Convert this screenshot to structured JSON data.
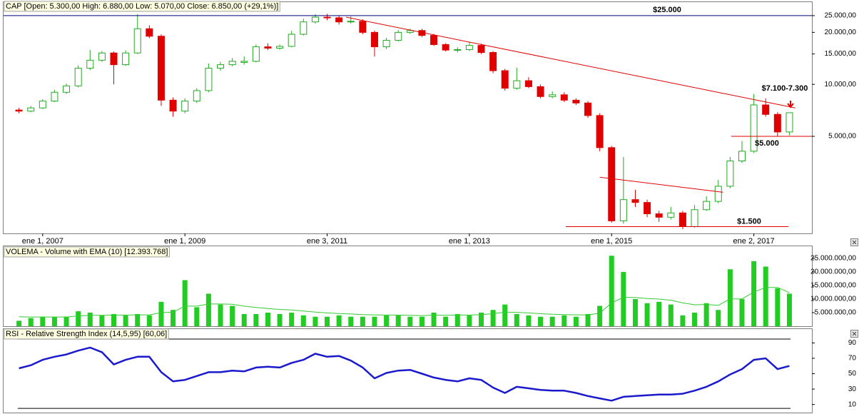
{
  "chart_data": [
    {
      "type": "candlestick",
      "title": "CAP [Open: 5.300,00  High: 6.880,00  Low: 5.070,00  Close: 6.850,00  (+29,1%)]",
      "categories": [
        null,
        null,
        null,
        null,
        null,
        null,
        null,
        null,
        null,
        null,
        null,
        null,
        null,
        null,
        null,
        null,
        null,
        null,
        null,
        null,
        null,
        null,
        null,
        null,
        null,
        null,
        null,
        null,
        null,
        null,
        null,
        null,
        null,
        null,
        null,
        null,
        null,
        null,
        null,
        null,
        null,
        null,
        null,
        null,
        null,
        null,
        null,
        null,
        null,
        null,
        null,
        null,
        null,
        null,
        null,
        null,
        null,
        null,
        null,
        null,
        null,
        null,
        null,
        null,
        null,
        null
      ],
      "open": [
        7100,
        7000,
        7300,
        8000,
        9000,
        9800,
        12400,
        13800,
        15200,
        13000,
        15200,
        21000,
        19000,
        8100,
        7000,
        8000,
        9200,
        12400,
        13000,
        13400,
        13600,
        16500,
        16200,
        16600,
        19500,
        23000,
        24500,
        24300,
        23000,
        23200,
        20000,
        16500,
        18000,
        20000,
        20500,
        19200,
        17000,
        15800,
        15900,
        16800,
        15300,
        12000,
        9500,
        10500,
        9700,
        8500,
        8700,
        8100,
        7800,
        6600,
        4300,
        1620,
        2150,
        2070,
        1780,
        1700,
        1800,
        1500,
        1880,
        2100,
        2570,
        3600,
        4100,
        7600,
        6700,
        5300
      ],
      "high": [
        7300,
        7500,
        8200,
        9300,
        10100,
        12900,
        15800,
        15600,
        15500,
        15700,
        25500,
        22000,
        19500,
        8400,
        8300,
        9500,
        13200,
        13500,
        14200,
        14500,
        17000,
        17300,
        17000,
        20400,
        24000,
        25500,
        25600,
        25000,
        24800,
        23800,
        20500,
        18600,
        20600,
        21000,
        21000,
        19600,
        17300,
        16400,
        17500,
        17200,
        15600,
        12300,
        12500,
        11000,
        10000,
        9100,
        9000,
        8300,
        8000,
        6800,
        4400,
        3800,
        2450,
        2150,
        1850,
        1950,
        1850,
        2000,
        2250,
        2800,
        3800,
        4700,
        8800,
        8300,
        6900,
        6880
      ],
      "low": [
        6800,
        6900,
        7200,
        7900,
        8800,
        9600,
        12100,
        13500,
        10000,
        12800,
        15000,
        18500,
        7500,
        6500,
        6800,
        7800,
        9000,
        12000,
        12700,
        13000,
        13400,
        15800,
        15900,
        16400,
        19200,
        22500,
        23500,
        22200,
        22500,
        19500,
        14500,
        16000,
        17700,
        19600,
        18800,
        16700,
        15500,
        15300,
        15600,
        15000,
        11600,
        9200,
        9300,
        9500,
        8300,
        8300,
        7900,
        7600,
        6400,
        4100,
        1580,
        1560,
        1950,
        1700,
        1600,
        1650,
        1450,
        1480,
        1850,
        2050,
        2500,
        3500,
        4000,
        6500,
        5000,
        5070
      ],
      "close": [
        7000,
        7300,
        8000,
        9000,
        9800,
        12400,
        13800,
        15200,
        13000,
        15200,
        21000,
        19000,
        8100,
        7000,
        8000,
        9200,
        12400,
        13000,
        13600,
        13600,
        16500,
        16200,
        16600,
        19500,
        23000,
        24500,
        24300,
        23000,
        23200,
        20000,
        16500,
        18000,
        20000,
        20500,
        19200,
        17000,
        15800,
        15900,
        16800,
        15300,
        12000,
        9500,
        10500,
        9700,
        8500,
        8700,
        8100,
        7800,
        6600,
        4300,
        1620,
        2150,
        2070,
        1780,
        1700,
        1800,
        1500,
        1880,
        2100,
        2570,
        3600,
        4100,
        7600,
        6700,
        5300,
        6850
      ],
      "up_color": "#22aa22",
      "down_color": "#e00000",
      "log_scale": true,
      "xlim": [
        -1.3,
        66.9
      ],
      "xticks": [
        {
          "value": 2,
          "label": "ene 1, 2007"
        },
        {
          "value": 14,
          "label": "ene 1, 2009"
        },
        {
          "value": 26,
          "label": "ene 3, 2011"
        },
        {
          "value": 38,
          "label": "ene 1, 2013"
        },
        {
          "value": 50,
          "label": "ene 1, 2015"
        },
        {
          "value": 62,
          "label": "ene 2, 2017"
        }
      ],
      "ylim": [
        1370,
        26200
      ],
      "yticks": [
        {
          "value": 5000,
          "label": "5.000,00"
        },
        {
          "value": 10000,
          "label": "10.000,00"
        },
        {
          "value": 15000,
          "label": "15.000,00"
        },
        {
          "value": 20000,
          "label": "20.000,00"
        },
        {
          "value": 25000,
          "label": "25.000,00"
        }
      ],
      "levels": [
        {
          "value": 25000,
          "label": "$25.000",
          "color": "#000080"
        },
        {
          "value": 5000,
          "label": "$5.000",
          "color": "#e00000"
        },
        {
          "value": 1500,
          "label": "$1.500",
          "color": "#e00000"
        }
      ],
      "trendlines": [
        {
          "color": "#e00000",
          "points": [
            [
              27.6,
              24500
            ],
            [
              65.5,
              7300
            ]
          ]
        },
        {
          "color": "#e00000",
          "points": [
            [
              49,
              2900
            ],
            [
              59.4,
              2370
            ]
          ]
        }
      ],
      "annotations": [
        {
          "text": "$7.100-7.300",
          "color": "#e00000"
        }
      ]
    },
    {
      "type": "bar",
      "title": "VOLEMA - Volume with EMA (10) [12.393.768]",
      "series": [
        {
          "name": "Volume",
          "type": "bar",
          "color": "#22cc22",
          "values": [
            2000000,
            3000000,
            3500000,
            3500000,
            3500000,
            5500000,
            5000000,
            4000000,
            4500000,
            4000000,
            4500000,
            4000000,
            9000000,
            6000000,
            17000000,
            7000000,
            12000000,
            8000000,
            7500000,
            4500000,
            4500000,
            5000000,
            4500000,
            5000000,
            4000000,
            3500000,
            3500000,
            4000000,
            3500000,
            3500000,
            3500000,
            4000000,
            4000000,
            3500000,
            3500000,
            5000000,
            3500000,
            4500000,
            4000000,
            5000000,
            6000000,
            8000000,
            4500000,
            4000000,
            3500000,
            3500000,
            4000000,
            3500000,
            4500000,
            7500000,
            26000000,
            20000000,
            10000000,
            8500000,
            9000000,
            8000000,
            4000000,
            5000000,
            8500000,
            6000000,
            21000000,
            10000000,
            24000000,
            22000000,
            14000000,
            12000000
          ]
        },
        {
          "name": "EMA (10)",
          "type": "line",
          "color": "#33cc33",
          "values": [
            3500000,
            3400000,
            3400000,
            3400000,
            3400000,
            3800000,
            4000000,
            4000000,
            4100000,
            4100000,
            4200000,
            4200000,
            5000000,
            5200000,
            7400000,
            7400000,
            8200000,
            8200000,
            8100000,
            7400000,
            6900000,
            6500000,
            6200000,
            6000000,
            5600000,
            5200000,
            4900000,
            4700000,
            4500000,
            4300000,
            4200000,
            4100000,
            4100000,
            4000000,
            3900000,
            4100000,
            4000000,
            4100000,
            4100000,
            4300000,
            4600000,
            5200000,
            5100000,
            4900000,
            4600000,
            4400000,
            4300000,
            4200000,
            4200000,
            4800000,
            8600000,
            10700000,
            10600000,
            10200000,
            10000000,
            9600000,
            8600000,
            7900000,
            8000000,
            7700000,
            10100000,
            10100000,
            12600000,
            14300000,
            14300000,
            12393768
          ]
        }
      ],
      "ylim": [
        0,
        29500000
      ],
      "yticks": [
        {
          "value": 5000000,
          "label": "5.000.000,00"
        },
        {
          "value": 10000000,
          "label": "10.000.000,00"
        },
        {
          "value": 15000000,
          "label": "15.000.000,00"
        },
        {
          "value": 20000000,
          "label": "20.000.000,00"
        },
        {
          "value": 25000000,
          "label": "25.000.000,00"
        }
      ]
    },
    {
      "type": "line",
      "title": "RSI - Relative Strength Index (14,5,95) [60,06]",
      "series": [
        {
          "name": "RSI",
          "type": "line",
          "color": "#1a1acc",
          "values": [
            57,
            61,
            68,
            72,
            75,
            80,
            84,
            78,
            62,
            68,
            72,
            72,
            52,
            40,
            42,
            47,
            52,
            52,
            54,
            53,
            58,
            59,
            58,
            64,
            68,
            76,
            72,
            73,
            67,
            58,
            44,
            51,
            54,
            55,
            50,
            45,
            42,
            40,
            44,
            42,
            32,
            25,
            33,
            31,
            29,
            28,
            28,
            25,
            21,
            18,
            15,
            20,
            21,
            22,
            23,
            23,
            24,
            28,
            33,
            40,
            49,
            56,
            68,
            70,
            56,
            60.06
          ]
        }
      ],
      "levels": [
        5,
        95
      ],
      "ylim": [
        -0.5,
        108
      ],
      "yticks": [
        10,
        30,
        50,
        70,
        90
      ]
    }
  ]
}
